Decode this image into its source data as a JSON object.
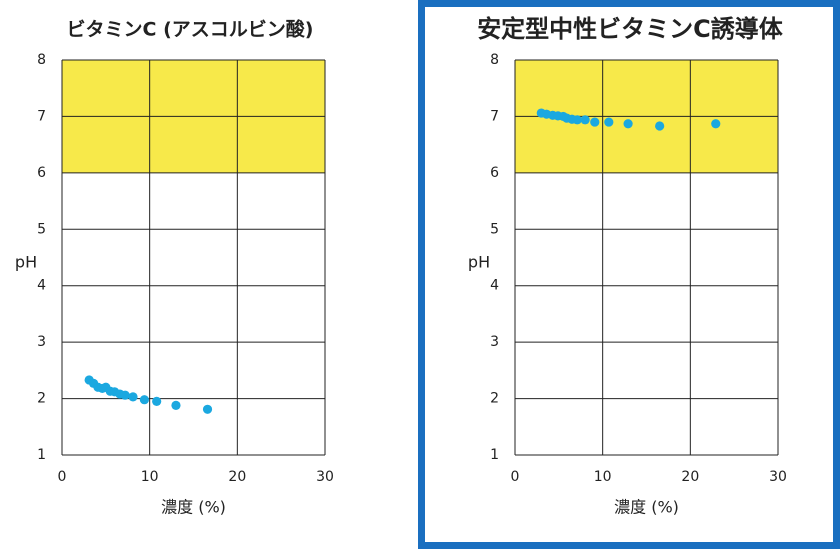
{
  "chart_data": [
    {
      "type": "scatter",
      "title": "ビタミンC (アスコルビン酸)",
      "x_label": "濃度 (%)",
      "y_label": "pH",
      "xlim": [
        0,
        30
      ],
      "ylim": [
        1,
        8
      ],
      "xticks": [
        0,
        10,
        20,
        30
      ],
      "yticks": [
        1,
        2,
        3,
        4,
        5,
        6,
        7,
        8
      ],
      "grid": true,
      "highlight_band": {
        "range": [
          6,
          8
        ],
        "color": "#f7e94a"
      },
      "series": [
        {
          "color": "#1ba8e0",
          "x": [
            3.1,
            3.6,
            4.1,
            4.6,
            5.0,
            5.5,
            6.0,
            6.6,
            7.2,
            8.1,
            9.4,
            10.8,
            13.0,
            16.6
          ],
          "values": [
            2.33,
            2.27,
            2.2,
            2.18,
            2.2,
            2.13,
            2.12,
            2.08,
            2.06,
            2.03,
            1.98,
            1.95,
            1.88,
            1.81
          ]
        }
      ]
    },
    {
      "type": "scatter",
      "title": "安定型中性ビタミンC誘導体",
      "x_label": "濃度 (%)",
      "y_label": "pH",
      "xlim": [
        0,
        30
      ],
      "ylim": [
        1,
        8
      ],
      "xticks": [
        0,
        10,
        20,
        30
      ],
      "yticks": [
        1,
        2,
        3,
        4,
        5,
        6,
        7,
        8
      ],
      "grid": true,
      "highlight_band": {
        "range": [
          6,
          8
        ],
        "color": "#f7e94a"
      },
      "series": [
        {
          "color": "#1ba8e0",
          "x": [
            3.0,
            3.6,
            4.3,
            4.9,
            5.5,
            5.9,
            6.5,
            7.1,
            8.0,
            9.1,
            10.7,
            12.9,
            16.5,
            22.9
          ],
          "values": [
            7.06,
            7.04,
            7.02,
            7.01,
            7.0,
            6.97,
            6.95,
            6.94,
            6.94,
            6.9,
            6.9,
            6.87,
            6.83,
            6.87
          ]
        }
      ]
    }
  ]
}
